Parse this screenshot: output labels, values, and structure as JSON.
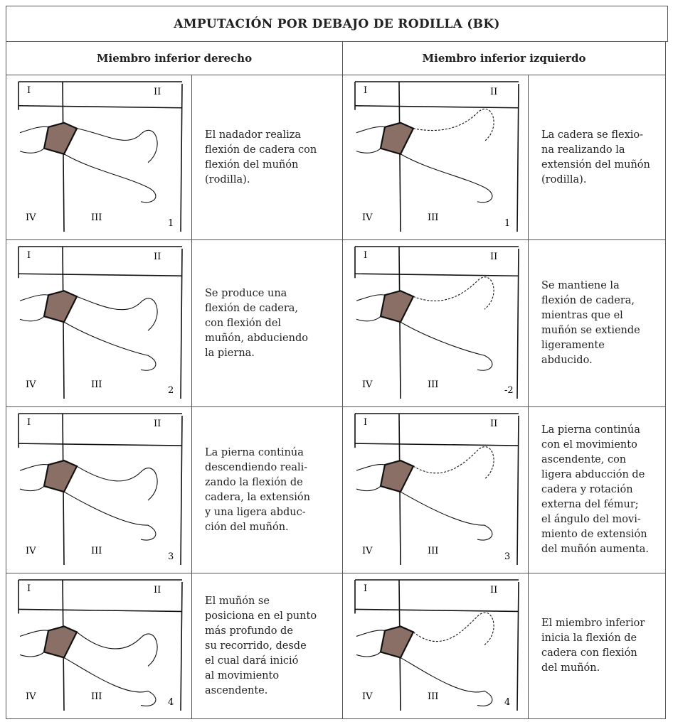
{
  "table": {
    "title": "AMPUTACIÓN POR DEBAJO DE RODILLA (BK)",
    "headers": [
      "Miembro inferior derecho",
      "Miembro inferior izquierdo"
    ],
    "rows": [
      {
        "left": {
          "figure": {
            "labels": [
              "I",
              "II",
              "III",
              "IV"
            ],
            "number": "1"
          },
          "lines": [
            "El nadador realiza",
            "flexión de cadera con",
            "flexión del muñón",
            "(rodilla)."
          ]
        },
        "right": {
          "figure": {
            "labels": [
              "I",
              "II",
              "III",
              "IV"
            ],
            "number": "1"
          },
          "lines": [
            "La cadera se flexio-",
            "na realizando la",
            "extensión del muñón",
            "(rodilla)."
          ]
        }
      },
      {
        "left": {
          "figure": {
            "labels": [
              "I",
              "II",
              "III",
              "IV"
            ],
            "number": "2"
          },
          "lines": [
            "Se produce una",
            "flexión de cadera,",
            "con flexión del",
            "muñón, abduciendo",
            "la pierna."
          ]
        },
        "right": {
          "figure": {
            "labels": [
              "I",
              "II",
              "III",
              "IV"
            ],
            "number": "-2"
          },
          "lines": [
            "Se mantiene la",
            "flexión de cadera,",
            "mientras que el",
            "muñón se extiende",
            "ligeramente",
            "abducido."
          ]
        }
      },
      {
        "left": {
          "figure": {
            "labels": [
              "I",
              "II",
              "III",
              "IV"
            ],
            "number": "3"
          },
          "lines": [
            "La pierna continúa",
            "descendiendo reali-",
            "zando la flexión de",
            "cadera, la extensión",
            "y una ligera abduc-",
            "ción del muñón."
          ]
        },
        "right": {
          "figure": {
            "labels": [
              "I",
              "II",
              "III",
              "IV"
            ],
            "number": "3"
          },
          "lines": [
            "La pierna continúa",
            "con el movimiento",
            "ascendente, con",
            "ligera abducción de",
            "cadera y rotación",
            "externa del fémur;",
            "el ángulo del movi-",
            "miento de extensión",
            "del muñón aumenta."
          ]
        }
      },
      {
        "left": {
          "figure": {
            "labels": [
              "I",
              "II",
              "III",
              "IV"
            ],
            "number": "4"
          },
          "lines": [
            "El muñón se",
            "posiciona en el punto",
            "más profundo de",
            "su recorrido, desde",
            "el cual dará inició",
            "al movimiento",
            "ascendente."
          ]
        },
        "right": {
          "figure": {
            "labels": [
              "I",
              "II",
              "III",
              "IV"
            ],
            "number": "4"
          },
          "lines": [
            "El miembro inferior",
            "inicia la flexión de",
            "cadera con flexión",
            "del muñón."
          ]
        }
      }
    ]
  }
}
